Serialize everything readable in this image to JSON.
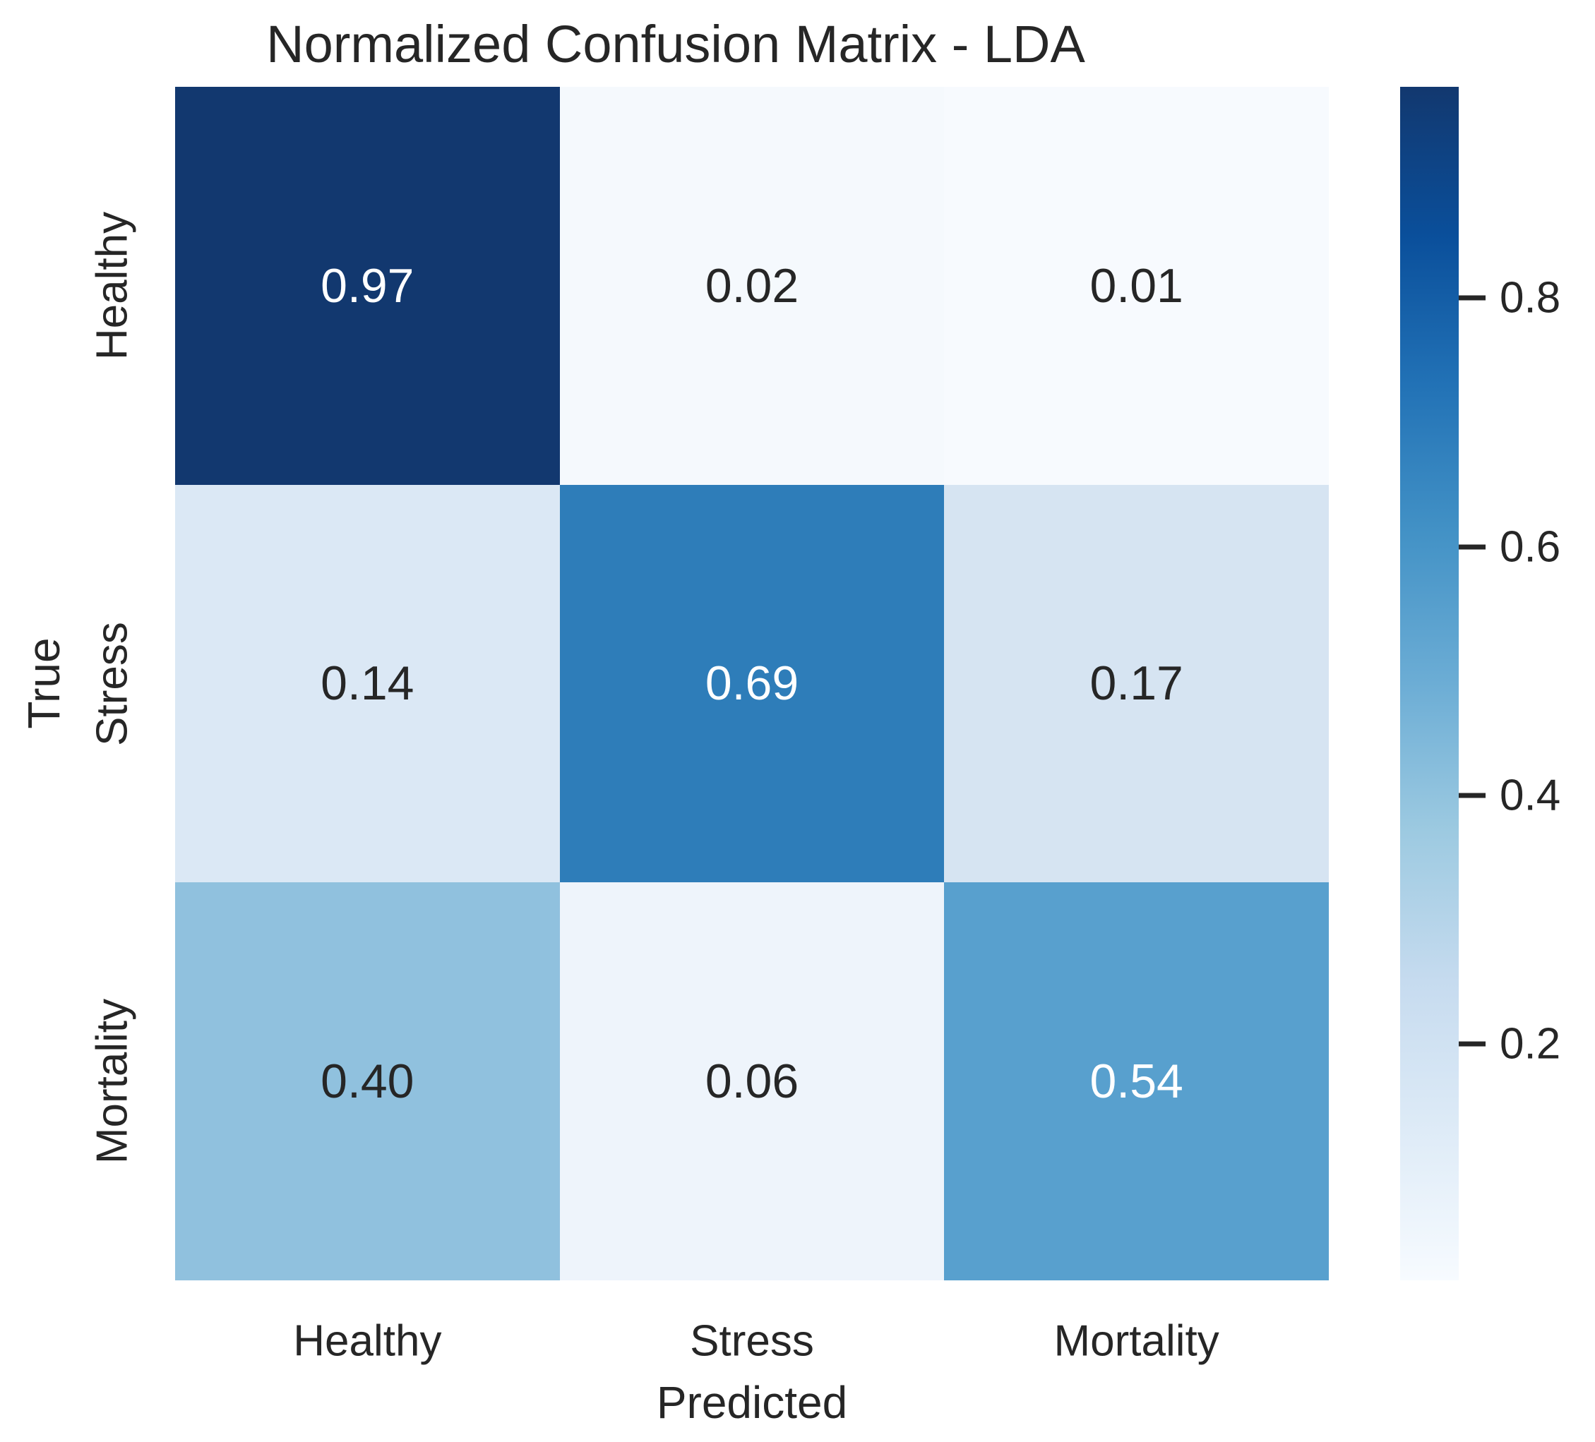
{
  "title": "Normalized Confusion Matrix - LDA",
  "axes": {
    "x_label": "Predicted",
    "y_label": "True"
  },
  "chart_data": {
    "type": "heatmap",
    "title": "Normalized Confusion Matrix - LDA",
    "xlabel": "Predicted",
    "ylabel": "True",
    "x_categories": [
      "Healthy",
      "Stress",
      "Mortality"
    ],
    "y_categories": [
      "Healthy",
      "Stress",
      "Mortality"
    ],
    "matrix": [
      [
        0.97,
        0.02,
        0.01
      ],
      [
        0.14,
        0.69,
        0.17
      ],
      [
        0.4,
        0.06,
        0.54
      ]
    ],
    "cell_labels": [
      [
        "0.97",
        "0.02",
        "0.01"
      ],
      [
        "0.14",
        "0.69",
        "0.17"
      ],
      [
        "0.40",
        "0.06",
        "0.54"
      ]
    ],
    "colormap": "Blues",
    "vmin": 0.01,
    "vmax": 0.97,
    "colorbar_ticks": [
      0.8,
      0.6,
      0.4,
      0.2
    ],
    "colorbar_tick_labels": [
      "0.8",
      "0.6",
      "0.4",
      "0.2"
    ],
    "grid": false,
    "legend_position": "right-colorbar"
  },
  "colors": {
    "background": "#ffffff",
    "text": "#262626",
    "annotation_on_dark": "#ffffff",
    "annotation_on_light": "#262626",
    "cell_colors": [
      [
        "#12386f",
        "#f5f9fd",
        "#f7fafe"
      ],
      [
        "#dbe8f5",
        "#2e7db9",
        "#d6e4f2"
      ],
      [
        "#90c1de",
        "#eef4fb",
        "#58a0ce"
      ]
    ],
    "colorbar_stops": [
      "#12386f",
      "#0a4f9b",
      "#2272b6",
      "#4392c6",
      "#6cadd5",
      "#9dcae1",
      "#c6dbef",
      "#deebf7",
      "#f7fbff"
    ]
  }
}
